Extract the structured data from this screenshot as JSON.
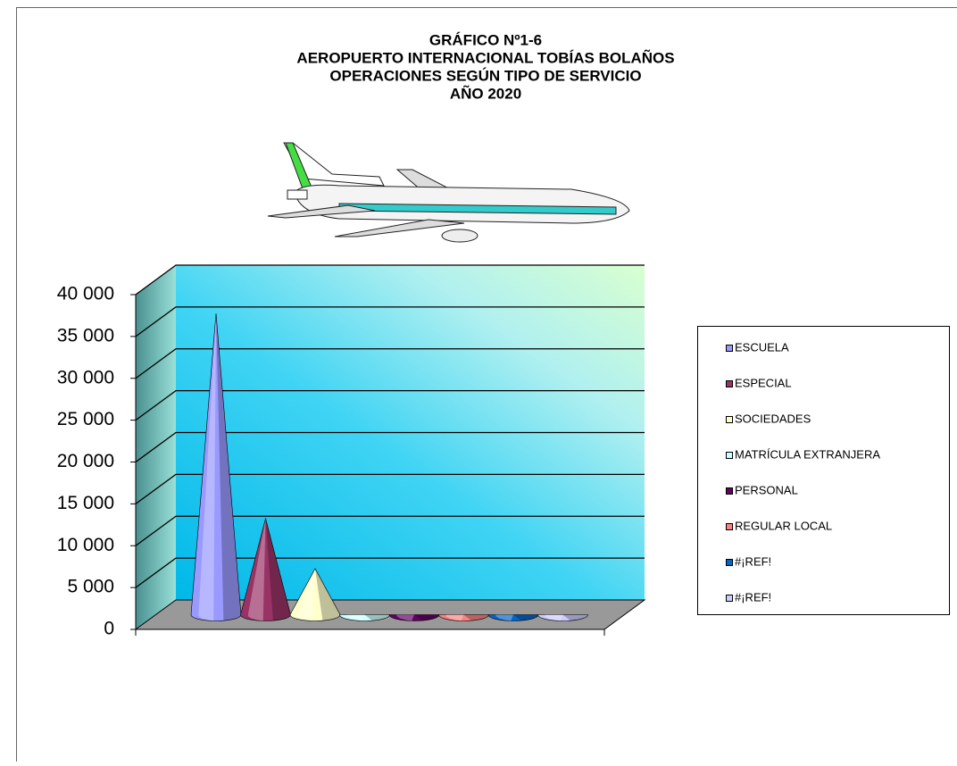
{
  "chart_data": {
    "type": "cone3d",
    "title": [
      "GRÁFICO Nº1-6",
      "AEROPUERTO INTERNACIONAL TOBÍAS BOLAÑOS",
      "OPERACIONES SEGÚN TIPO DE SERVICIO",
      "AÑO 2020"
    ],
    "series": [
      {
        "name": "ESCUELA",
        "color": "#9999ff",
        "values": [
          36000
        ]
      },
      {
        "name": "ESPECIAL",
        "color": "#993366",
        "values": [
          11500
        ]
      },
      {
        "name": "SOCIEDADES",
        "color": "#ffffcc",
        "values": [
          5500
        ]
      },
      {
        "name": "MATRÍCULA EXTRANJERA",
        "color": "#ccffff",
        "values": [
          0
        ]
      },
      {
        "name": "PERSONAL",
        "color": "#660066",
        "values": [
          0
        ]
      },
      {
        "name": "REGULAR LOCAL",
        "color": "#ff8080",
        "values": [
          0
        ]
      },
      {
        "name": "#¡REF!",
        "color": "#0066cc",
        "values": [
          0
        ]
      },
      {
        "name": "#¡REF!",
        "color": "#ccccff",
        "values": [
          0
        ]
      }
    ],
    "ylim": [
      0,
      40000
    ],
    "yticks": [
      0,
      {
        "value": 5000,
        "label": "5 000"
      },
      {
        "value": 10000,
        "label": "10 000"
      },
      {
        "value": 15000,
        "label": "15 000"
      },
      {
        "value": 20000,
        "label": "20 000"
      },
      {
        "value": 25000,
        "label": "25 000"
      },
      {
        "value": 30000,
        "label": "30 000"
      },
      {
        "value": 35000,
        "label": "35 000"
      },
      {
        "value": 40000,
        "label": "40 000"
      }
    ],
    "grid": true
  }
}
